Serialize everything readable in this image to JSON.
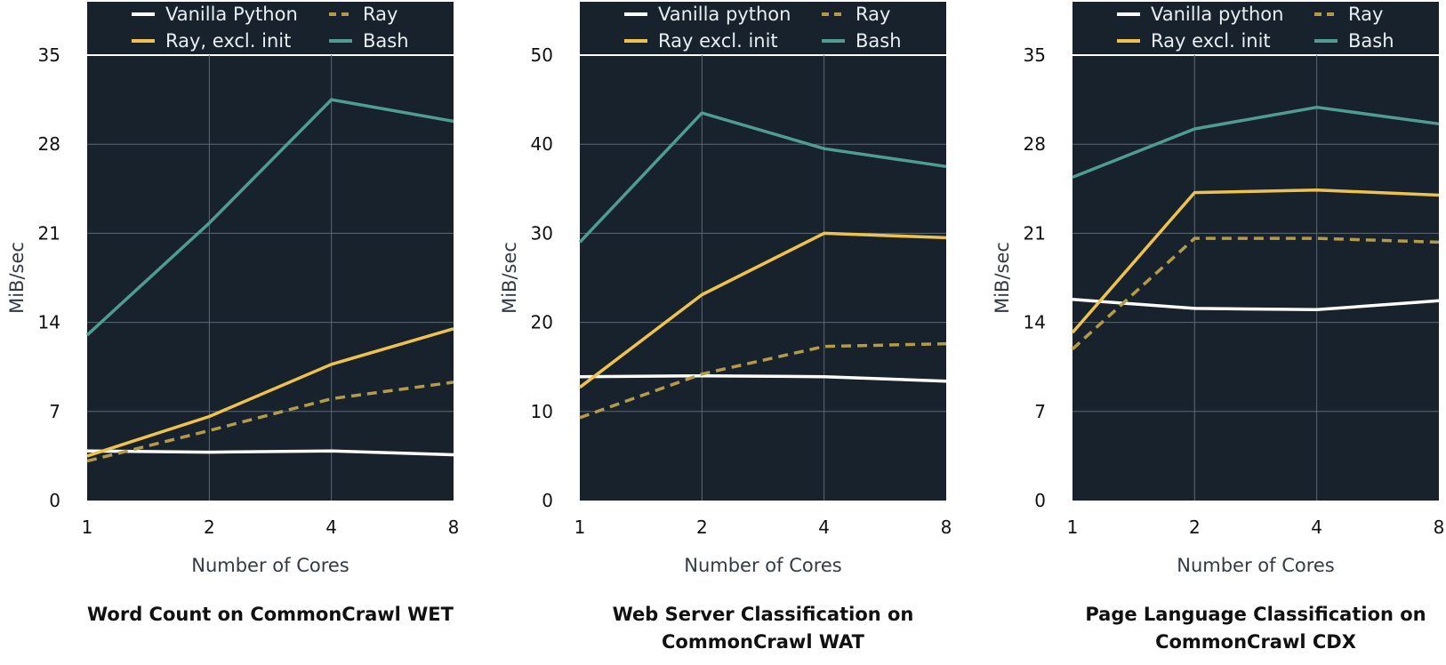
{
  "colors": {
    "plot_background": "#17222c",
    "grid": "#5c6874",
    "vanilla": "#ffffff",
    "ray": "#b39b4a",
    "ray_excl_init": "#efc24e",
    "bash": "#4f9c93"
  },
  "chart_data": [
    {
      "type": "line",
      "title_lines": [
        "Word Count on CommonCrawl WET"
      ],
      "xlabel": "Number of Cores",
      "ylabel": "MiB/sec",
      "x": [
        "1",
        "2",
        "4",
        "8"
      ],
      "ylim": [
        0,
        35
      ],
      "yticks": [
        "0",
        "7",
        "14",
        "21",
        "28",
        "35"
      ],
      "grid": true,
      "legend_position": "top",
      "series": [
        {
          "key": "vanilla",
          "name": "Vanilla Python",
          "style": "solid",
          "values": [
            3.9,
            3.8,
            3.9,
            3.6
          ]
        },
        {
          "key": "ray",
          "name": "Ray",
          "style": "dashed",
          "values": [
            3.1,
            5.5,
            8.0,
            9.3
          ]
        },
        {
          "key": "ray_excl_init",
          "name": "Ray, excl. init",
          "style": "solid",
          "values": [
            3.5,
            6.6,
            10.7,
            13.5
          ]
        },
        {
          "key": "bash",
          "name": "Bash",
          "style": "solid",
          "values": [
            13.0,
            21.8,
            31.5,
            29.8
          ]
        }
      ]
    },
    {
      "type": "line",
      "title_lines": [
        "Web Server Classification on",
        "CommonCrawl WAT"
      ],
      "xlabel": "Number of Cores",
      "ylabel": "MiB/sec",
      "x": [
        "1",
        "2",
        "4",
        "8"
      ],
      "ylim": [
        0,
        50
      ],
      "yticks": [
        "0",
        "10",
        "20",
        "30",
        "40",
        "50"
      ],
      "grid": true,
      "legend_position": "top",
      "series": [
        {
          "key": "vanilla",
          "name": "Vanilla python",
          "style": "solid",
          "values": [
            13.9,
            14.0,
            13.9,
            13.4
          ]
        },
        {
          "key": "ray",
          "name": "Ray",
          "style": "dashed",
          "values": [
            9.3,
            14.2,
            17.3,
            17.6
          ]
        },
        {
          "key": "ray_excl_init",
          "name": "Ray excl. init",
          "style": "solid",
          "values": [
            12.7,
            23.1,
            30.0,
            29.5
          ]
        },
        {
          "key": "bash",
          "name": "Bash",
          "style": "solid",
          "values": [
            29.0,
            43.5,
            39.5,
            37.5
          ]
        }
      ]
    },
    {
      "type": "line",
      "title_lines": [
        "Page Language Classification on",
        "CommonCrawl CDX"
      ],
      "xlabel": "Number of Cores",
      "ylabel": "MiB/sec",
      "x": [
        "1",
        "2",
        "4",
        "8"
      ],
      "ylim": [
        0,
        35
      ],
      "yticks": [
        "0",
        "7",
        "14",
        "21",
        "28",
        "35"
      ],
      "grid": true,
      "legend_position": "top",
      "series": [
        {
          "key": "vanilla",
          "name": "Vanilla python",
          "style": "solid",
          "values": [
            15.8,
            15.1,
            15.0,
            15.7
          ]
        },
        {
          "key": "ray",
          "name": "Ray",
          "style": "dashed",
          "values": [
            11.9,
            20.6,
            20.6,
            20.3
          ]
        },
        {
          "key": "ray_excl_init",
          "name": "Ray excl. init",
          "style": "solid",
          "values": [
            13.2,
            24.2,
            24.4,
            24.0
          ]
        },
        {
          "key": "bash",
          "name": "Bash",
          "style": "solid",
          "values": [
            25.4,
            29.2,
            30.9,
            29.6
          ]
        }
      ]
    }
  ]
}
